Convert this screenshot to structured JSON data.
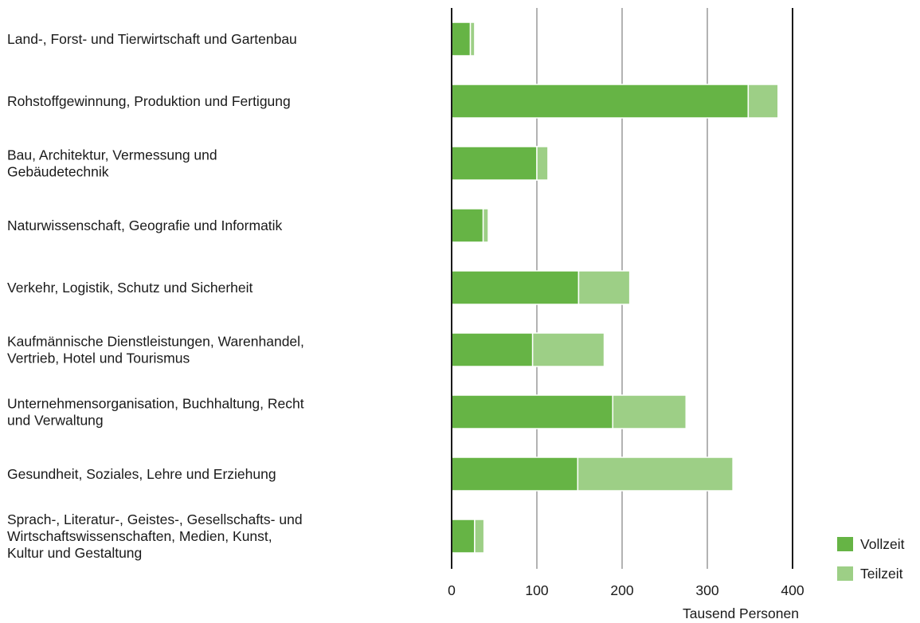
{
  "chart_data": {
    "type": "bar",
    "orientation": "horizontal",
    "stacked": true,
    "categories": [
      [
        "Land-, Forst- und Tierwirtschaft und Gartenbau"
      ],
      [
        "Rohstoffgewinnung, Produktion und Fertigung"
      ],
      [
        "Bau, Architektur, Vermessung und",
        "Gebäudetechnik"
      ],
      [
        "Naturwissenschaft, Geografie und Informatik"
      ],
      [
        "Verkehr, Logistik, Schutz und Sicherheit"
      ],
      [
        "Kaufmännische Dienstleistungen, Warenhandel,",
        "Vertrieb, Hotel und Tourismus"
      ],
      [
        "Unternehmensorganisation, Buchhaltung, Recht",
        "und Verwaltung"
      ],
      [
        "Gesundheit, Soziales, Lehre und Erziehung"
      ],
      [
        "Sprach-, Literatur-, Geistes-, Gesellschafts- und",
        "Wirtschaftswissenschaften, Medien, Kunst,",
        "Kultur und Gestaltung"
      ]
    ],
    "series": [
      {
        "name": "Vollzeit",
        "color": "#66b445",
        "values": [
          22,
          348,
          100,
          37,
          149,
          95,
          189,
          148,
          27
        ]
      },
      {
        "name": "Teilzeit",
        "color": "#9dcf86",
        "values": [
          5,
          35,
          13,
          6,
          60,
          84,
          86,
          182,
          11
        ]
      }
    ],
    "xlim": [
      0,
      400
    ],
    "xticks": [
      "0",
      "100",
      "200",
      "300",
      "400"
    ],
    "xlabel": "Tausend Personen",
    "ylabel": "",
    "title": "",
    "grid": true,
    "legend_position": "bottom-right"
  }
}
